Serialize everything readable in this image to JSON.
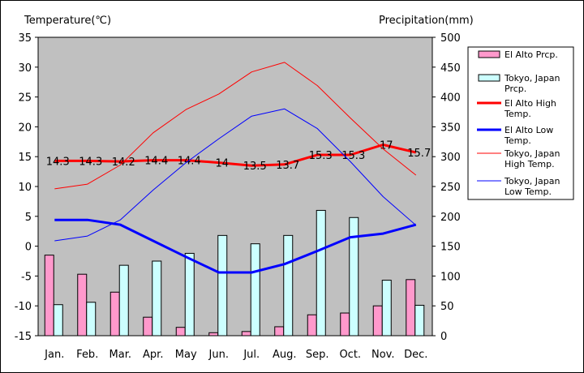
{
  "chart_data": {
    "type": "bar+line",
    "categories": [
      "Jan.",
      "Feb.",
      "Mar.",
      "Apr.",
      "May",
      "Jun.",
      "Jul.",
      "Aug.",
      "Sep.",
      "Oct.",
      "Nov.",
      "Dec."
    ],
    "left_axis": {
      "title": "Temperature(℃)",
      "min": -15,
      "max": 35,
      "step": 5
    },
    "right_axis": {
      "title": "Precipitation(mm)",
      "min": 0,
      "max": 500,
      "step": 50
    },
    "grid": false,
    "legend_position": "right",
    "bar_series": [
      {
        "name": "El Alto Prcp.",
        "color": "#ff99cc",
        "values": [
          135,
          103,
          73,
          31,
          14,
          5,
          7,
          15,
          35,
          38,
          50,
          94
        ]
      },
      {
        "name": "Tokyo, Japan Prcp.",
        "color": "#ccffff",
        "values": [
          52,
          56,
          118,
          125,
          138,
          168,
          154,
          168,
          210,
          198,
          93,
          51
        ]
      }
    ],
    "line_series": [
      {
        "name": "El Alto High Temp.",
        "color": "#ff0000",
        "width": 3,
        "axis": "left",
        "values": [
          14.3,
          14.3,
          14.2,
          14.4,
          14.4,
          14.0,
          13.5,
          13.7,
          15.3,
          15.3,
          17.0,
          15.7
        ],
        "labels": [
          "14.3",
          "14.3",
          "14.2",
          "14.4",
          "14.4",
          "14",
          "13.5",
          "13.7",
          "15.3",
          "15.3",
          "17",
          "15.7"
        ]
      },
      {
        "name": "El Alto Low Temp.",
        "color": "#0000ff",
        "width": 3,
        "axis": "left",
        "values": [
          4.4,
          4.4,
          3.6,
          0.9,
          -1.8,
          -4.4,
          -4.4,
          -3.0,
          -0.8,
          1.5,
          2.1,
          3.6
        ]
      },
      {
        "name": "Tokyo, Japan High Temp.",
        "color": "#ff0000",
        "width": 1,
        "axis": "left",
        "values": [
          9.6,
          10.4,
          13.6,
          19.0,
          22.9,
          25.5,
          29.2,
          30.8,
          26.9,
          21.5,
          16.3,
          11.9
        ]
      },
      {
        "name": "Tokyo, Japan Low Temp.",
        "color": "#0000ff",
        "width": 1,
        "axis": "left",
        "values": [
          0.9,
          1.7,
          4.4,
          9.4,
          14.0,
          18.0,
          21.8,
          23.0,
          19.7,
          14.2,
          8.3,
          3.5
        ]
      }
    ],
    "legend_text": [
      [
        "El Alto Prcp."
      ],
      [
        "Tokyo, Japan",
        "Prcp."
      ],
      [
        "El Alto High",
        "Temp."
      ],
      [
        "El Alto Low",
        "Temp."
      ],
      [
        "Tokyo, Japan",
        "High Temp."
      ],
      [
        "Tokyo, Japan",
        "Low Temp."
      ]
    ]
  }
}
